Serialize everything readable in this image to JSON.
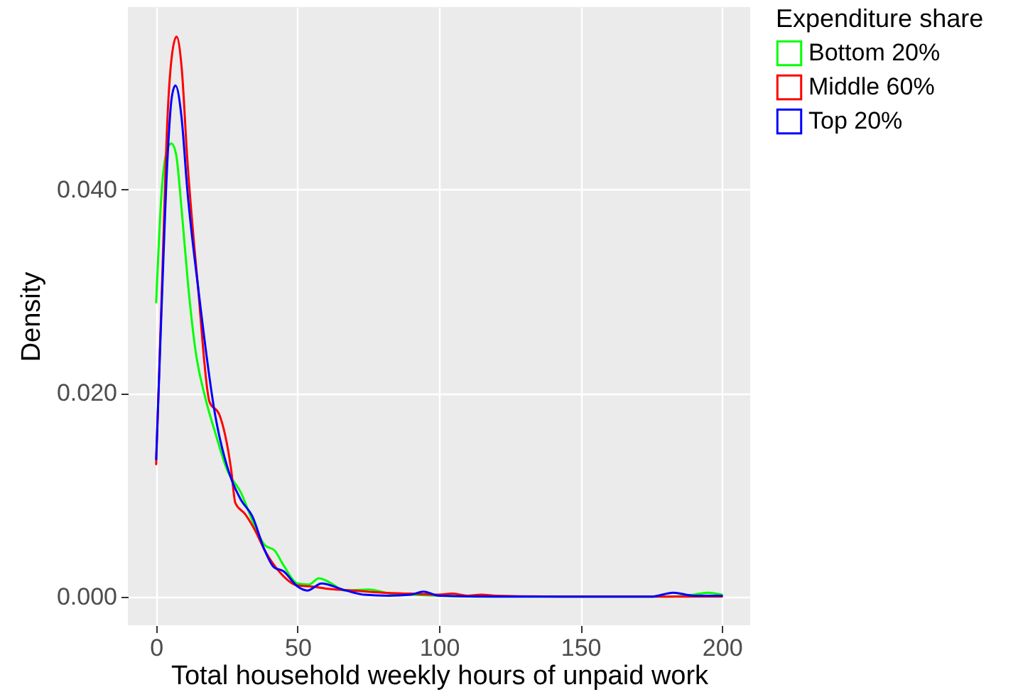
{
  "chart_data": {
    "type": "line",
    "xlabel": "Total household weekly hours of unpaid work",
    "ylabel": "Density",
    "legend_title": "Expenditure share",
    "xlim": [
      -10,
      210
    ],
    "xticks": [
      0,
      50,
      100,
      150,
      200
    ],
    "ylim": [
      -0.0028,
      0.0579
    ],
    "yticks": [
      {
        "value": 0,
        "label": "0.000"
      },
      {
        "value": 0.02,
        "label": "0.020"
      },
      {
        "value": 0.04,
        "label": "0.040"
      }
    ],
    "grid": true,
    "legend": "right",
    "marker": "none",
    "line_style": "solid",
    "series": [
      {
        "name": "Bottom 20%",
        "color": "#00ff00",
        "x": [
          0,
          2,
          4,
          5.4,
          7,
          9,
          11.3,
          14,
          17.4,
          21,
          25,
          30,
          34,
          38.3,
          42,
          45,
          50,
          54,
          57.5,
          62,
          66.5,
          75,
          83,
          90,
          100,
          120,
          150,
          180,
          190,
          195,
          200
        ],
        "values": [
          0.0289,
          0.04,
          0.044,
          0.0445,
          0.0435,
          0.038,
          0.0306,
          0.024,
          0.0195,
          0.016,
          0.0125,
          0.0102,
          0.0075,
          0.0051,
          0.0045,
          0.0031,
          0.0013,
          0.0012,
          0.0018,
          0.0013,
          0.0006,
          0.0007,
          0.0003,
          0.0002,
          0.0001,
          0,
          0,
          0,
          0.0002,
          0.0004,
          0.0002
        ]
      },
      {
        "name": "Middle 60%",
        "color": "#ff0000",
        "x": [
          0,
          2,
          4,
          5.5,
          7.2,
          9,
          11,
          14.7,
          18.9,
          22.3,
          26.5,
          28,
          31.5,
          35,
          38.3,
          43.4,
          50,
          55,
          60,
          70,
          80,
          90,
          100,
          104.6,
          110,
          115,
          120,
          150,
          180,
          200
        ],
        "values": [
          0.013,
          0.03,
          0.047,
          0.053,
          0.055,
          0.052,
          0.043,
          0.0307,
          0.0191,
          0.0179,
          0.0125,
          0.0092,
          0.0081,
          0.0065,
          0.0046,
          0.0025,
          0.0011,
          0.001,
          0.0008,
          0.0006,
          0.0004,
          0.0003,
          0.0002,
          0.0003,
          0.0001,
          0.0002,
          0.0001,
          0,
          0,
          0
        ]
      },
      {
        "name": "Top 20%",
        "color": "#0000ff",
        "x": [
          0,
          2,
          4,
          5.5,
          6.8,
          9,
          11,
          15,
          20.7,
          26.5,
          30,
          34,
          38.3,
          41.6,
          45,
          50,
          53.4,
          58.5,
          66,
          73.5,
          82,
          90,
          94.5,
          100,
          120,
          150,
          175,
          182.8,
          190,
          200
        ],
        "values": [
          0.0135,
          0.029,
          0.043,
          0.049,
          0.0502,
          0.047,
          0.04,
          0.03,
          0.0181,
          0.0116,
          0.0095,
          0.0079,
          0.0046,
          0.0029,
          0.0025,
          0.001,
          0.0006,
          0.0013,
          0.0007,
          0.0002,
          0.0001,
          0.0002,
          0.0005,
          0.0001,
          0,
          0,
          0,
          0.0004,
          0.0001,
          0.0001
        ]
      }
    ]
  }
}
